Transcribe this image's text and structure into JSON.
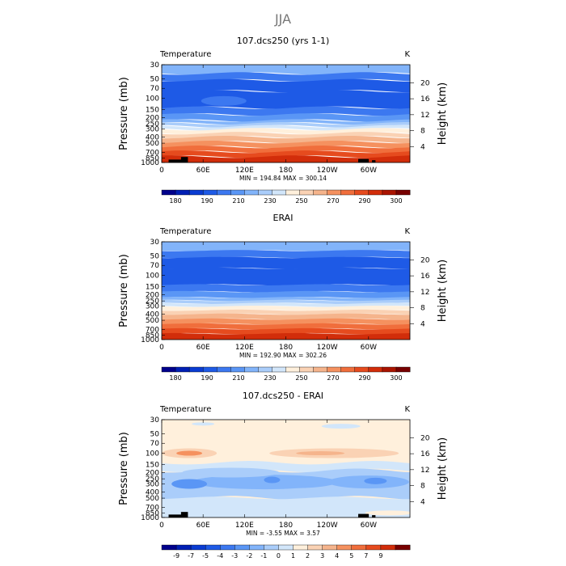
{
  "main_title": "JJA",
  "chart_data": [
    {
      "type": "heatmap",
      "title": "107.dcs250 (yrs 1-1)",
      "variable": "Temperature",
      "units": "K",
      "ylabel": "Pressure (mb)",
      "ylabel_right": "Height (km)",
      "x_ticks": [
        "0",
        "60E",
        "120E",
        "180",
        "120W",
        "60W"
      ],
      "x_tick_values": [
        0,
        60,
        120,
        180,
        240,
        300
      ],
      "xlim": [
        0,
        360
      ],
      "pressure_ticks": [
        "30",
        "50",
        "70",
        "100",
        "150",
        "200",
        "250",
        "300",
        "400",
        "500",
        "700",
        "850",
        "1000"
      ],
      "pressure_values": [
        30,
        50,
        70,
        100,
        150,
        200,
        250,
        300,
        400,
        500,
        700,
        850,
        1000
      ],
      "height_ticks": [
        "20",
        "16",
        "12",
        "8",
        "4"
      ],
      "height_values": [
        20,
        16,
        12,
        8,
        4
      ],
      "min_max_text": "MIN = 194.84   MAX = 300.14",
      "colorbar_labels": [
        "180",
        "190",
        "210",
        "230",
        "250",
        "270",
        "290",
        "300"
      ],
      "colorbar_colors": [
        "#00008c",
        "#001fb4",
        "#0a3cd2",
        "#1e5ae6",
        "#3c78f0",
        "#5a96f5",
        "#82b4fa",
        "#aacdfa",
        "#d2e6fa",
        "#fff0dc",
        "#fad2b4",
        "#f5b48c",
        "#f5915f",
        "#f06e3c",
        "#e64b1e",
        "#d22d0a",
        "#aa1400",
        "#780000"
      ],
      "field_mode": "abs",
      "band_colors": [
        "#82b4fa",
        "#3c78f0",
        "#1e5ae6",
        "#1e5ae6",
        "#3c78f0",
        "#5a96f5",
        "#82b4fa",
        "#aacdfa",
        "#d2e6fa",
        "#fff0dc",
        "#fad2b4",
        "#f5b48c",
        "#f5915f",
        "#f06e3c",
        "#e64b1e",
        "#d22d0a"
      ],
      "has_topography": true
    },
    {
      "type": "heatmap",
      "title": "ERAI",
      "variable": "Temperature",
      "units": "K",
      "ylabel": "Pressure (mb)",
      "ylabel_right": "Height (km)",
      "x_ticks": [
        "0",
        "60E",
        "120E",
        "180",
        "120W",
        "60W"
      ],
      "x_tick_values": [
        0,
        60,
        120,
        180,
        240,
        300
      ],
      "xlim": [
        0,
        360
      ],
      "pressure_ticks": [
        "30",
        "50",
        "70",
        "100",
        "150",
        "200",
        "250",
        "300",
        "400",
        "500",
        "700",
        "850",
        "1000"
      ],
      "pressure_values": [
        30,
        50,
        70,
        100,
        150,
        200,
        250,
        300,
        400,
        500,
        700,
        850,
        1000
      ],
      "height_ticks": [
        "20",
        "16",
        "12",
        "8",
        "4"
      ],
      "height_values": [
        20,
        16,
        12,
        8,
        4
      ],
      "min_max_text": "MIN = 192.90   MAX = 302.26",
      "colorbar_labels": [
        "180",
        "190",
        "210",
        "230",
        "250",
        "270",
        "290",
        "300"
      ],
      "colorbar_colors": [
        "#00008c",
        "#001fb4",
        "#0a3cd2",
        "#1e5ae6",
        "#3c78f0",
        "#5a96f5",
        "#82b4fa",
        "#aacdfa",
        "#d2e6fa",
        "#fff0dc",
        "#fad2b4",
        "#f5b48c",
        "#f5915f",
        "#f06e3c",
        "#e64b1e",
        "#d22d0a",
        "#aa1400",
        "#780000"
      ],
      "field_mode": "abs",
      "band_colors": [
        "#82b4fa",
        "#3c78f0",
        "#1e5ae6",
        "#1e5ae6",
        "#3c78f0",
        "#5a96f5",
        "#82b4fa",
        "#aacdfa",
        "#d2e6fa",
        "#fff0dc",
        "#fad2b4",
        "#f5b48c",
        "#f5915f",
        "#f06e3c",
        "#e64b1e",
        "#d22d0a"
      ],
      "has_topography": false
    },
    {
      "type": "heatmap",
      "title": "107.dcs250 - ERAI",
      "variable": "Temperature",
      "units": "K",
      "ylabel": "Pressure (mb)",
      "ylabel_right": "Height (km)",
      "x_ticks": [
        "0",
        "60E",
        "120E",
        "180",
        "120W",
        "60W"
      ],
      "x_tick_values": [
        0,
        60,
        120,
        180,
        240,
        300
      ],
      "xlim": [
        0,
        360
      ],
      "pressure_ticks": [
        "30",
        "50",
        "70",
        "100",
        "150",
        "200",
        "250",
        "300",
        "400",
        "500",
        "700",
        "850",
        "1000"
      ],
      "pressure_values": [
        30,
        50,
        70,
        100,
        150,
        200,
        250,
        300,
        400,
        500,
        700,
        850,
        1000
      ],
      "height_ticks": [
        "20",
        "16",
        "12",
        "8",
        "4"
      ],
      "height_values": [
        20,
        16,
        12,
        8,
        4
      ],
      "min_max_text": "MIN =   -3.55   MAX =   3.57",
      "colorbar_labels": [
        "-9",
        "-7",
        "-5",
        "-4",
        "-3",
        "-2",
        "-1",
        "0",
        "1",
        "2",
        "3",
        "4",
        "5",
        "7",
        "9"
      ],
      "colorbar_colors": [
        "#00008c",
        "#001fb4",
        "#0a3cd2",
        "#1e5ae6",
        "#3c78f0",
        "#5a96f5",
        "#82b4fa",
        "#aacdfa",
        "#d2e6fa",
        "#fff0dc",
        "#fad2b4",
        "#f5b48c",
        "#f5915f",
        "#f06e3c",
        "#e64b1e",
        "#d22d0a",
        "#780000"
      ],
      "field_mode": "diff",
      "band_colors": [],
      "has_topography": true
    }
  ]
}
